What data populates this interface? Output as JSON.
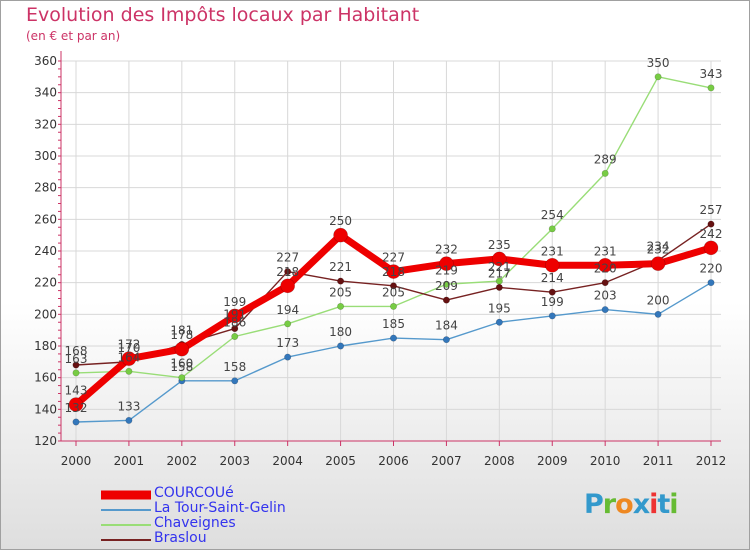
{
  "title": "Evolution des Impôts locaux par Habitant",
  "subtitle": "(en € et par an)",
  "logo": {
    "text": "Proxiti",
    "letter_colors": [
      "#3399cc",
      "#66bb33",
      "#ee8822",
      "#3399cc",
      "#ee3333",
      "#3399cc",
      "#66bb33"
    ]
  },
  "colors": {
    "axis": "#cc3366",
    "grid": "#d8d8d8",
    "tick_text": "#333333",
    "data_label": "#444444"
  },
  "chart_data": {
    "type": "line",
    "title": "Evolution des Impôts locaux par Habitant",
    "subtitle": "(en € et par an)",
    "xlabel": "",
    "ylabel": "",
    "x": [
      2000,
      2001,
      2002,
      2003,
      2004,
      2005,
      2006,
      2007,
      2008,
      2009,
      2010,
      2011,
      2012
    ],
    "ylim": [
      120,
      360
    ],
    "yticks": [
      120,
      140,
      160,
      180,
      200,
      220,
      240,
      260,
      280,
      300,
      320,
      340,
      360
    ],
    "grid": true,
    "legend_position": "bottom-left",
    "series": [
      {
        "name": "La Tour-Saint-Gelin",
        "color": "#5599cc",
        "marker": "#3377bb",
        "values": [
          132,
          133,
          158,
          158,
          173,
          180,
          185,
          184,
          195,
          199,
          203,
          200,
          220
        ]
      },
      {
        "name": "Chaveignes",
        "color": "#99dd77",
        "marker": "#77cc44",
        "values": [
          163,
          164,
          160,
          186,
          194,
          205,
          205,
          219,
          221,
          254,
          289,
          350,
          343
        ]
      },
      {
        "name": "Braslou",
        "color": "#772222",
        "marker": "#661111",
        "values": [
          168,
          170,
          181,
          191,
          227,
          221,
          218,
          209,
          217,
          214,
          220,
          234,
          257
        ]
      },
      {
        "name": "COURCOUé",
        "color": "#ee0000",
        "marker": "#ee0000",
        "values": [
          143,
          172,
          178,
          199,
          218,
          250,
          227,
          232,
          235,
          231,
          231,
          232,
          242
        ]
      }
    ],
    "legend_order": [
      "COURCOUé",
      "La Tour-Saint-Gelin",
      "Chaveignes",
      "Braslou"
    ]
  }
}
